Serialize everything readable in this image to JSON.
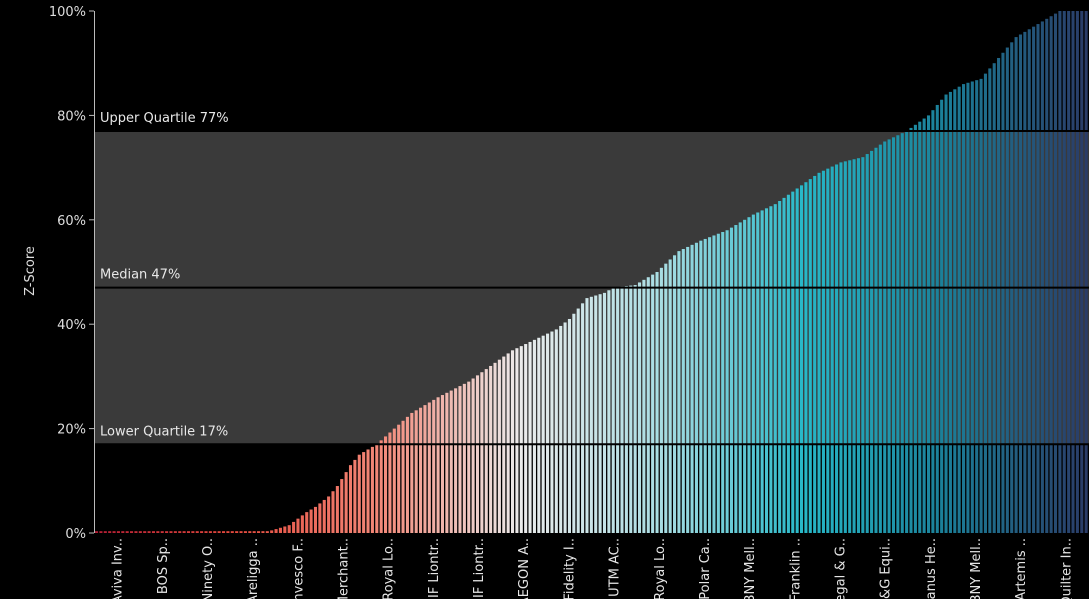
{
  "chart_data": {
    "type": "bar",
    "ylabel": "Z-Score",
    "ylim": [
      0,
      100
    ],
    "yticks": [
      "0%",
      "20%",
      "40%",
      "60%",
      "80%",
      "100%"
    ],
    "yticks_values": [
      0,
      20,
      40,
      60,
      80,
      100
    ],
    "bar_count": 227,
    "reference_lines": [
      {
        "label": "Upper Quartile 77%",
        "value": 77
      },
      {
        "label": "Median 47%",
        "value": 47
      },
      {
        "label": "Lower Quartile 17%",
        "value": 17
      }
    ],
    "shaded_band": [
      17,
      77
    ],
    "categories_shown": [
      "Aviva Inv..",
      "BOS Sp..",
      "Ninety O..",
      "Areligga ..",
      "Invesco F..",
      "Merchant..",
      "Royal Lo..",
      "IF Liontr..",
      "IF Liontr..",
      "AEGON A..",
      "Fidelity I..",
      "UTM AC..",
      "Royal Lo..",
      "Polar Ca..",
      "BNY Mell..",
      "Franklin ..",
      "Legal & G..",
      "M&G Equi..",
      "Janus He..",
      "BNY Mell..",
      "Artemis ..",
      "Quilter In.."
    ],
    "profile": [
      [
        0,
        0
      ],
      [
        38,
        0
      ],
      [
        40,
        0.5
      ],
      [
        44,
        1.5
      ],
      [
        48,
        4
      ],
      [
        50,
        5
      ],
      [
        53,
        7
      ],
      [
        55,
        9
      ],
      [
        58,
        13
      ],
      [
        60,
        15
      ],
      [
        62,
        16
      ],
      [
        64,
        17
      ],
      [
        68,
        20
      ],
      [
        72,
        23
      ],
      [
        78,
        26
      ],
      [
        85,
        29
      ],
      [
        90,
        32
      ],
      [
        95,
        35
      ],
      [
        100,
        37
      ],
      [
        105,
        39
      ],
      [
        108,
        41
      ],
      [
        112,
        45
      ],
      [
        116,
        46
      ],
      [
        118,
        47
      ],
      [
        123,
        47.5
      ],
      [
        128,
        50
      ],
      [
        133,
        54
      ],
      [
        138,
        56
      ],
      [
        144,
        58
      ],
      [
        150,
        61
      ],
      [
        155,
        63
      ],
      [
        160,
        66
      ],
      [
        165,
        69
      ],
      [
        170,
        71
      ],
      [
        175,
        72
      ],
      [
        180,
        75
      ],
      [
        185,
        77
      ],
      [
        190,
        80
      ],
      [
        194,
        84
      ],
      [
        198,
        86
      ],
      [
        202,
        87
      ],
      [
        206,
        91
      ],
      [
        210,
        95
      ],
      [
        214,
        97
      ],
      [
        218,
        99
      ],
      [
        220,
        100
      ],
      [
        226,
        100
      ]
    ],
    "colors": [
      "#b31e34",
      "#e44b3e",
      "#f38878",
      "#ececec",
      "#a8dde3",
      "#27b8c8",
      "#1b7f98",
      "#2a3c68"
    ]
  }
}
